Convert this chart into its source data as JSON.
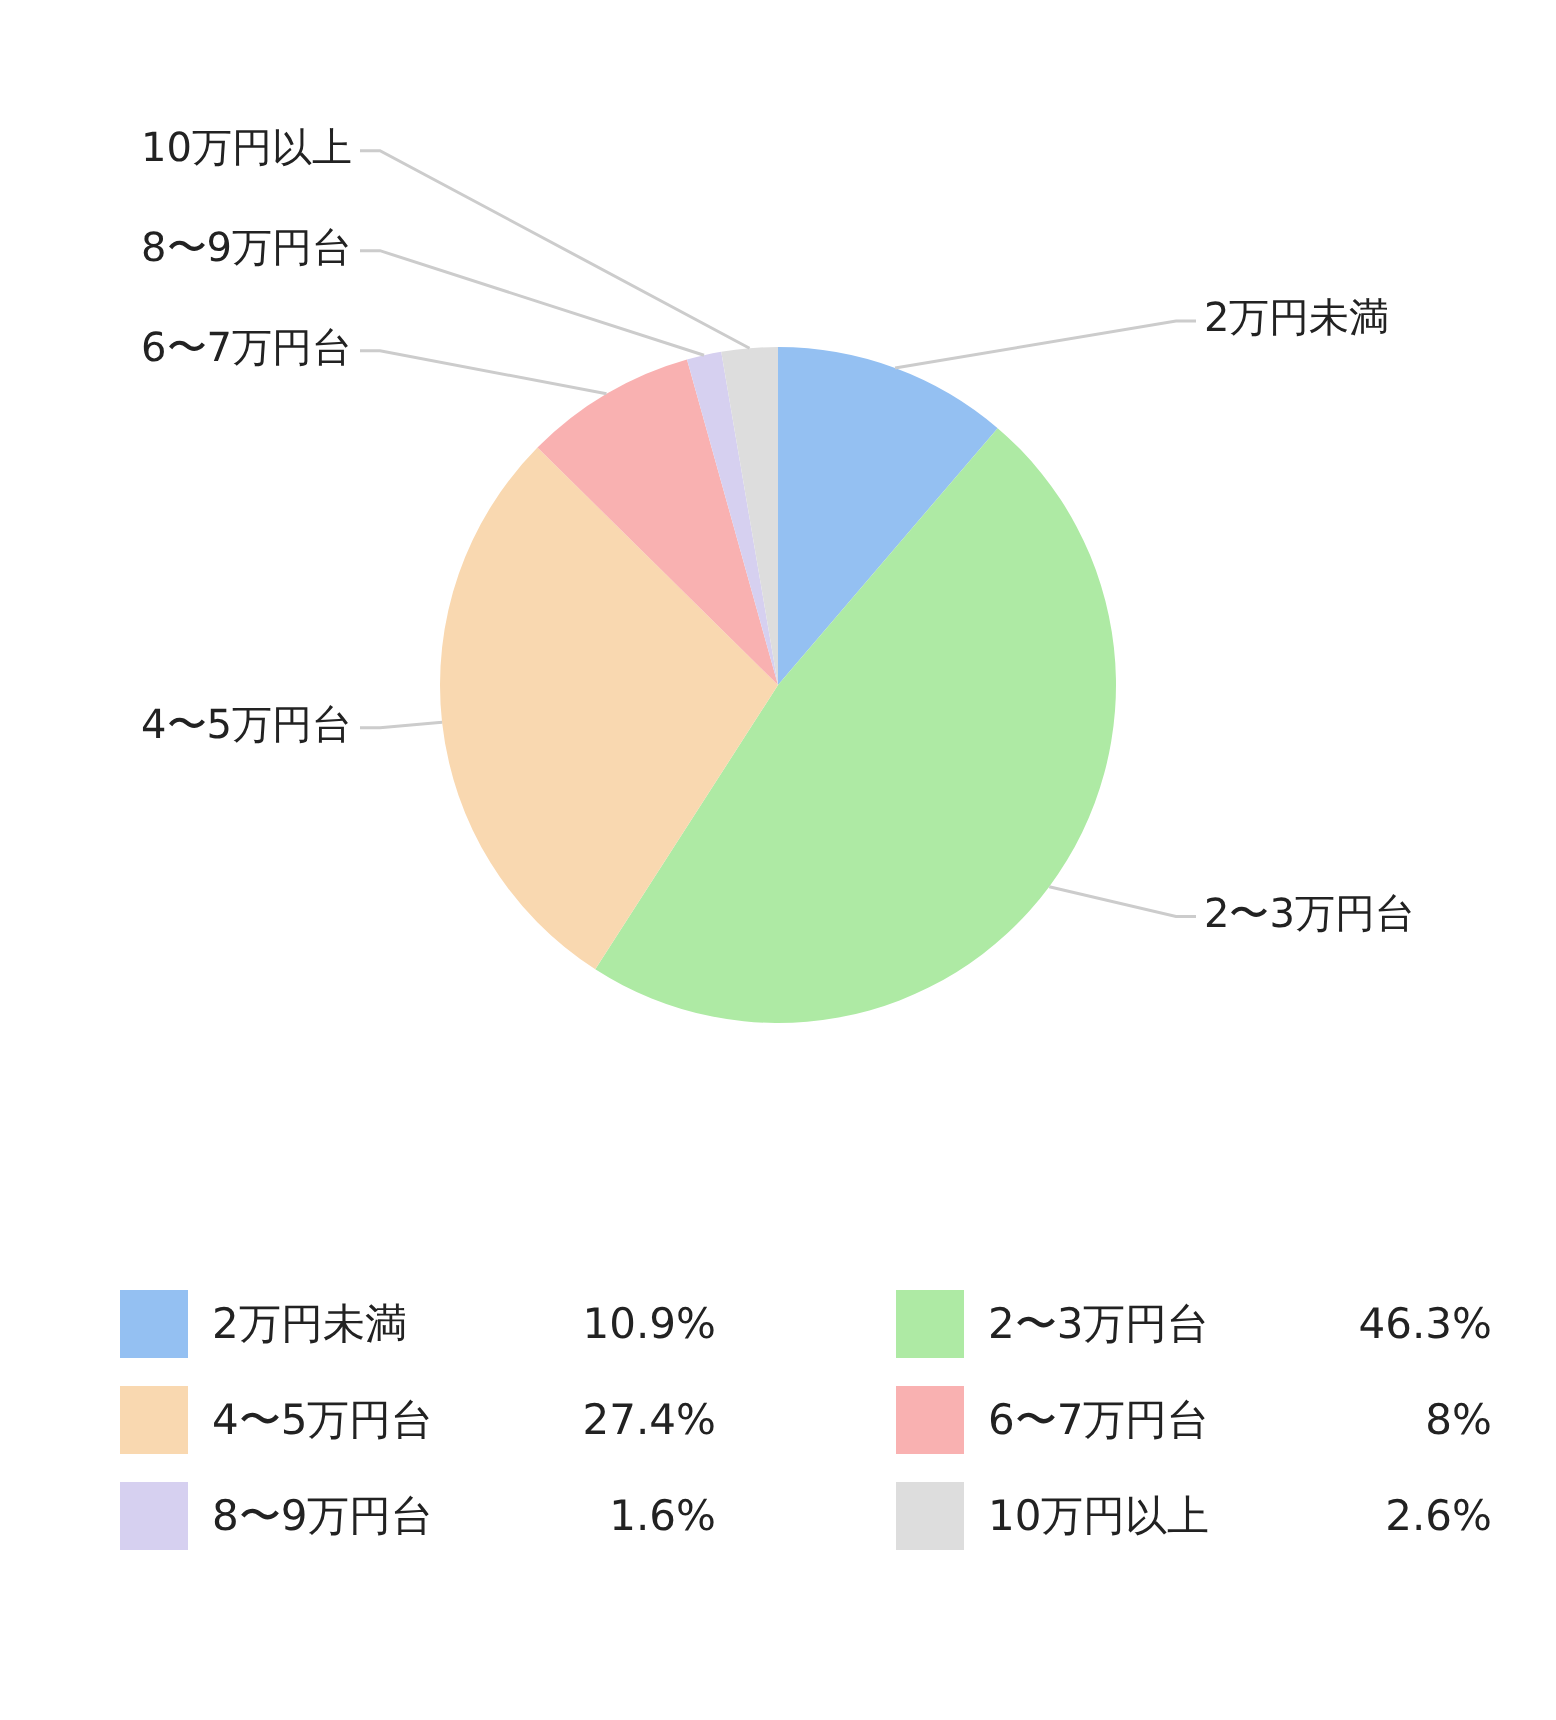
{
  "chart_data": {
    "type": "pie",
    "categories": [
      "2万円未満",
      "2〜3万円台",
      "4〜5万円台",
      "6〜7万円台",
      "8〜9万円台",
      "10万円以上"
    ],
    "values": [
      10.9,
      46.3,
      27.4,
      8,
      1.6,
      2.6
    ],
    "value_labels": [
      "10.9%",
      "46.3%",
      "27.4%",
      "8%",
      "1.6%",
      "2.6%"
    ],
    "colors": [
      "#94c0f2",
      "#aeeaa4",
      "#f9d8b0",
      "#f9b1b1",
      "#d6d0f0",
      "#dddddd"
    ],
    "legend": "bottom"
  }
}
